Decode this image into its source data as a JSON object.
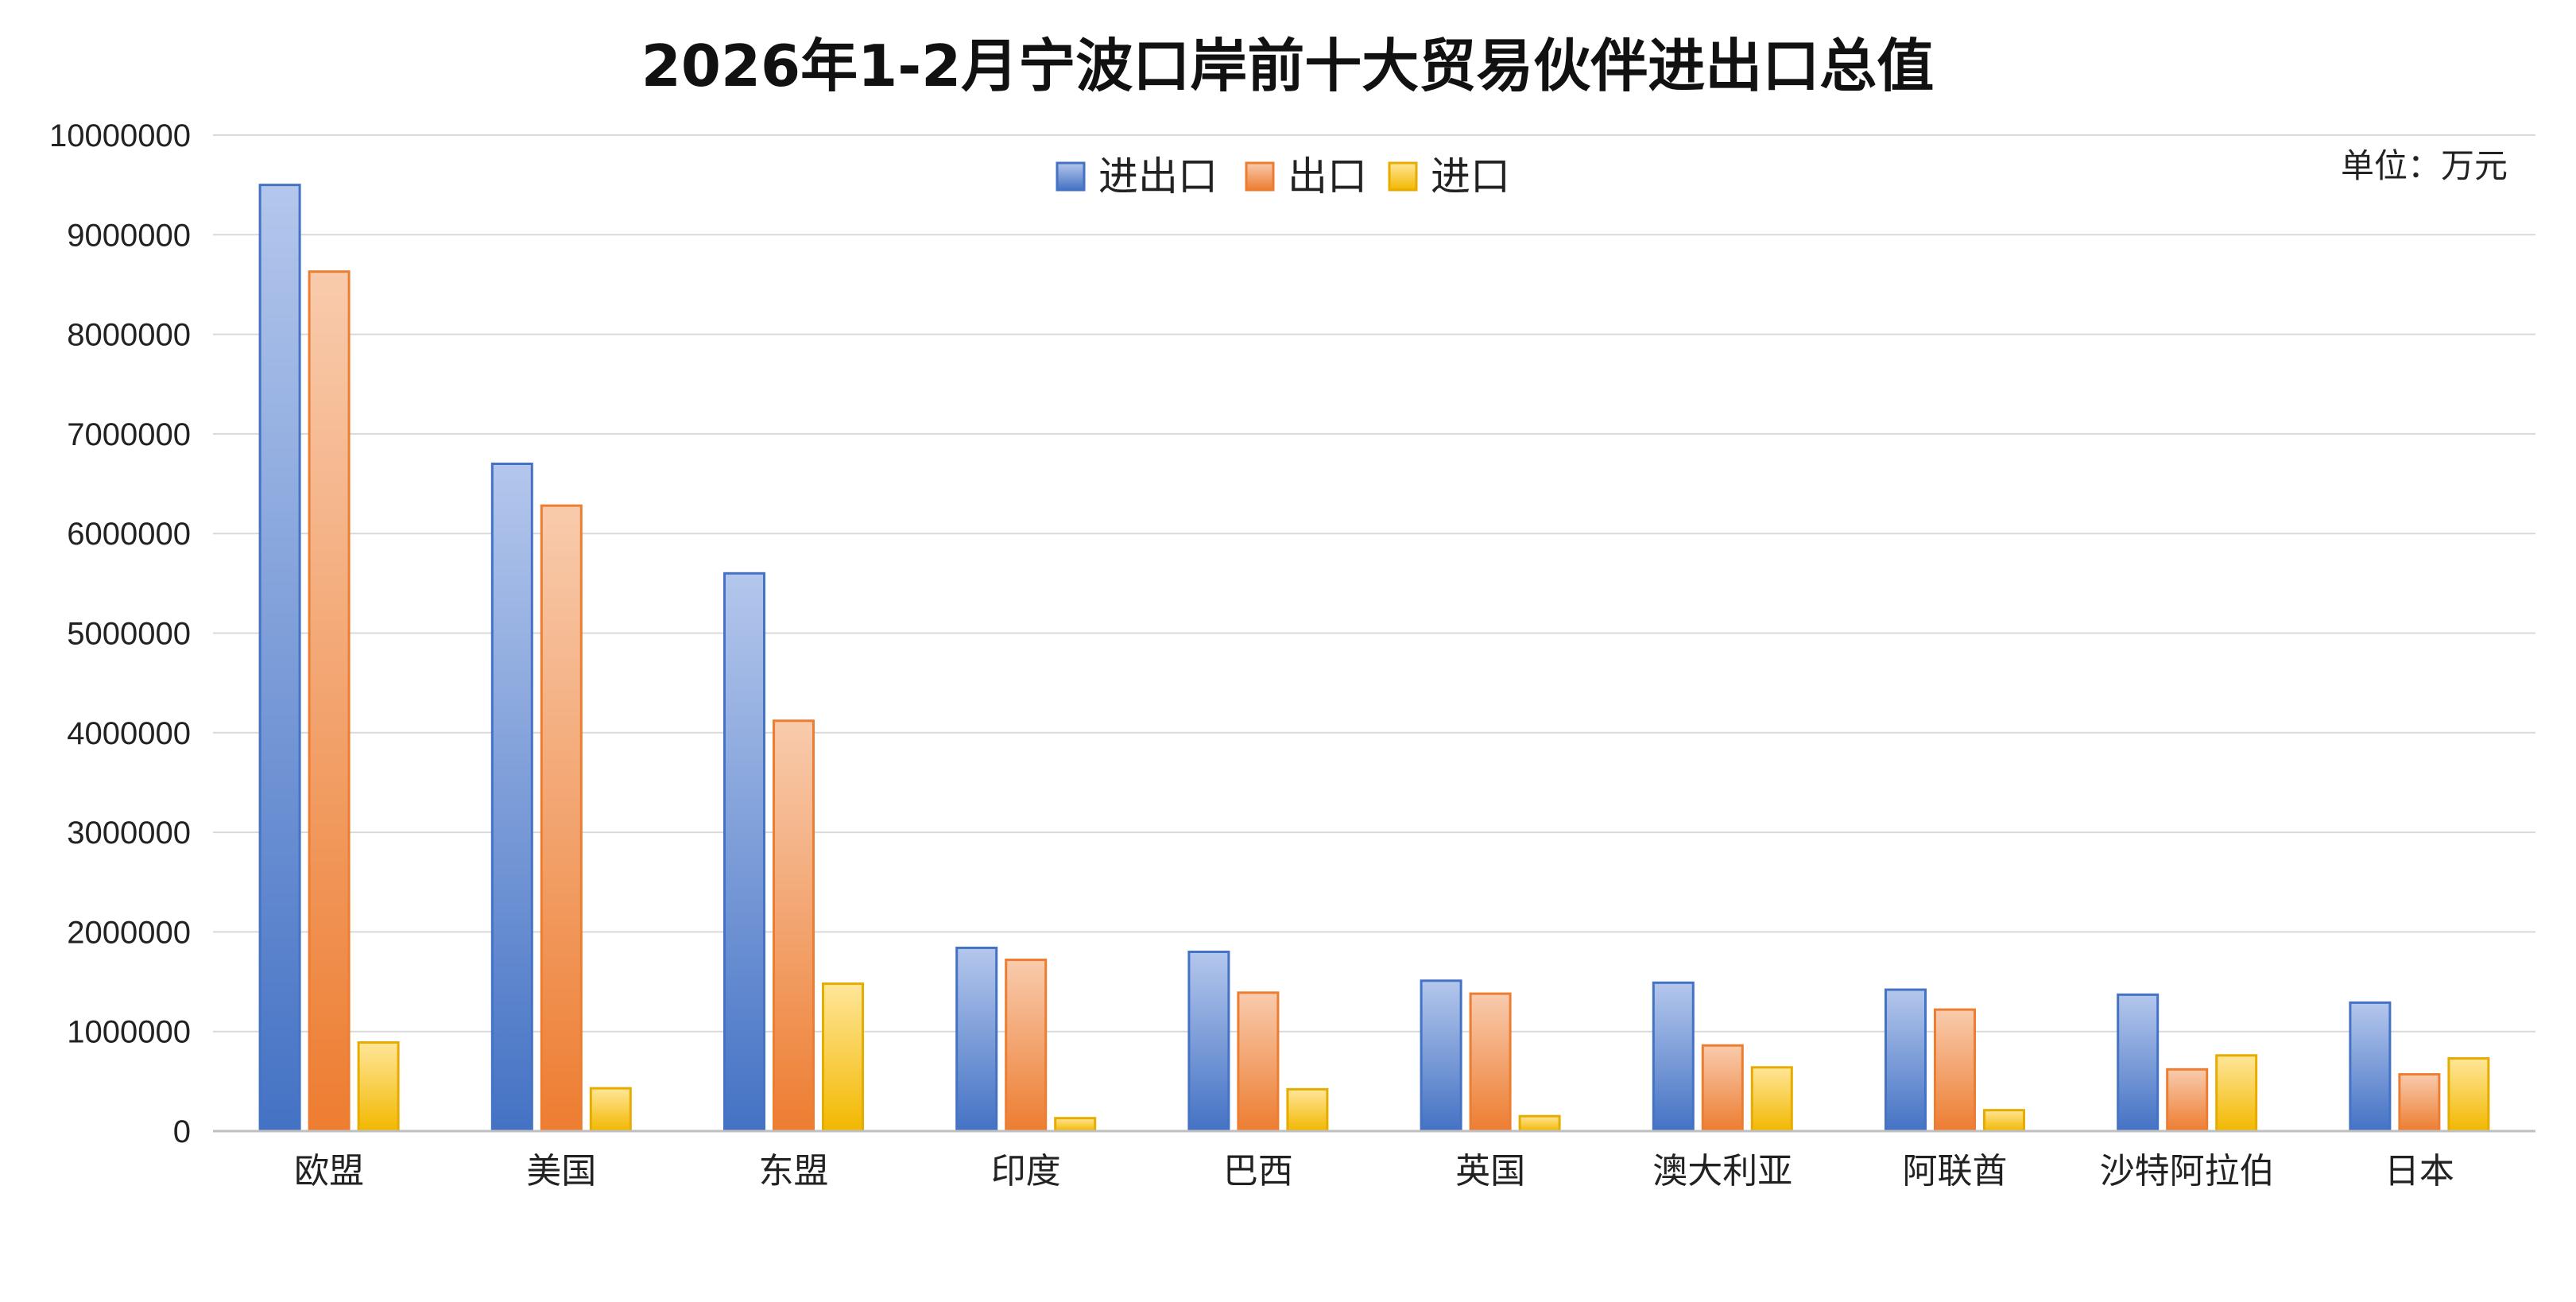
{
  "chart_data": {
    "type": "bar",
    "title": "2026年1-2月宁波口岸前十大贸易伙伴进出口总值",
    "unit_label": "单位：万元",
    "categories": [
      "欧盟",
      "美国",
      "东盟",
      "印度",
      "巴西",
      "英国",
      "澳大利亚",
      "阿联酋",
      "沙特阿拉伯",
      "日本"
    ],
    "series": [
      {
        "name": "进出口",
        "color_top": "#b4c7ec",
        "color_bottom": "#4472c4",
        "stroke": "#4472c4",
        "values": [
          9500000,
          6700000,
          5600000,
          1840000,
          1800000,
          1510000,
          1490000,
          1420000,
          1370000,
          1290000
        ]
      },
      {
        "name": "出口",
        "color_top": "#f8cbad",
        "color_bottom": "#ed7d31",
        "stroke": "#ed7d31",
        "values": [
          8630000,
          6280000,
          4120000,
          1720000,
          1390000,
          1380000,
          860000,
          1220000,
          620000,
          570000
        ]
      },
      {
        "name": "进口",
        "color_top": "#ffe699",
        "color_bottom": "#f2b800",
        "stroke": "#e6ac00",
        "values": [
          890000,
          430000,
          1480000,
          130000,
          420000,
          150000,
          640000,
          210000,
          760000,
          730000
        ]
      }
    ],
    "ylim": [
      0,
      10000000
    ],
    "yticks": [
      "0",
      "1000000",
      "2000000",
      "3000000",
      "4000000",
      "5000000",
      "6000000",
      "7000000",
      "8000000",
      "9000000",
      "10000000"
    ],
    "grid": true,
    "legend_position": "top-center"
  }
}
